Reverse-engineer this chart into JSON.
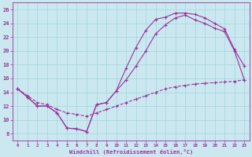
{
  "xlabel": "Windchill (Refroidissement éolien,°C)",
  "bg_color": "#cbe8f0",
  "line_color": "#993399",
  "grid_color": "#a8d8df",
  "xlim": [
    -0.5,
    23.5
  ],
  "ylim": [
    7,
    27
  ],
  "yticks": [
    8,
    10,
    12,
    14,
    16,
    18,
    20,
    22,
    24,
    26
  ],
  "xticks": [
    0,
    1,
    2,
    3,
    4,
    5,
    6,
    7,
    8,
    9,
    10,
    11,
    12,
    13,
    14,
    15,
    16,
    17,
    18,
    19,
    20,
    21,
    22,
    23
  ],
  "line1_x": [
    0,
    1,
    2,
    3,
    4,
    5,
    6,
    7,
    8,
    9,
    10,
    11,
    12,
    13,
    14,
    15,
    16,
    17,
    18,
    19,
    20,
    21,
    22,
    23
  ],
  "line1_y": [
    14.5,
    13.3,
    12.0,
    12.0,
    11.0,
    8.8,
    8.7,
    8.3,
    12.2,
    12.5,
    14.2,
    17.5,
    20.5,
    23.0,
    24.6,
    24.9,
    25.5,
    25.5,
    25.3,
    24.8,
    24.0,
    23.2,
    20.2,
    17.8
  ],
  "line2_x": [
    0,
    1,
    2,
    3,
    4,
    5,
    6,
    7,
    8,
    9,
    10,
    11,
    12,
    13,
    14,
    15,
    16,
    17,
    18,
    19,
    20,
    21,
    22,
    23
  ],
  "line2_y": [
    14.5,
    13.3,
    12.0,
    12.0,
    11.0,
    8.8,
    8.7,
    8.3,
    12.2,
    12.5,
    14.2,
    15.8,
    17.8,
    20.0,
    22.5,
    23.8,
    24.8,
    25.2,
    24.5,
    24.0,
    23.3,
    22.8,
    20.0,
    15.8
  ],
  "line3_x": [
    0,
    1,
    2,
    3,
    4,
    5,
    6,
    7,
    8,
    9,
    10,
    11,
    12,
    13,
    14,
    15,
    16,
    17,
    18,
    19,
    20,
    21,
    22,
    23
  ],
  "line3_y": [
    14.5,
    13.5,
    12.5,
    12.2,
    11.5,
    11.0,
    10.8,
    10.5,
    11.0,
    11.5,
    12.0,
    12.5,
    13.0,
    13.5,
    14.0,
    14.5,
    14.8,
    15.0,
    15.2,
    15.3,
    15.4,
    15.5,
    15.6,
    15.8
  ]
}
